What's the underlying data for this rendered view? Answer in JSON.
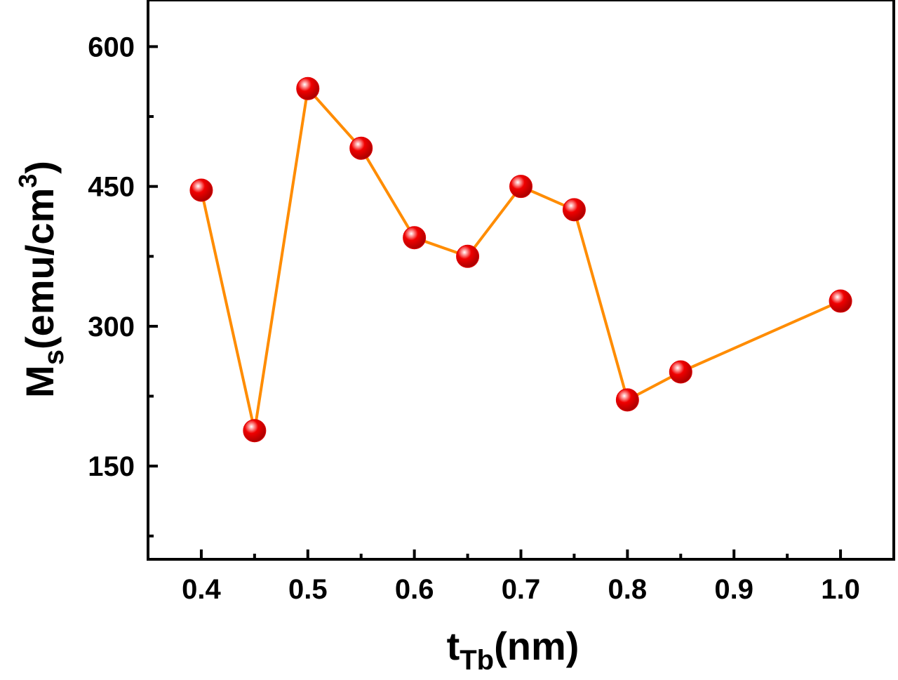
{
  "chart_data": {
    "type": "line",
    "title": "",
    "xlabel": {
      "main": "t",
      "sub": "Tb",
      "unit": "(nm)"
    },
    "ylabel": {
      "main": "M",
      "sub": "s",
      "unit": "(emu/cm",
      "sup": "3",
      "close": ")"
    },
    "xlim": [
      0.35,
      1.05
    ],
    "ylim": [
      50,
      650
    ],
    "x_ticks": [
      {
        "value": 0.4,
        "label": "0.4"
      },
      {
        "value": 0.5,
        "label": "0.5"
      },
      {
        "value": 0.6,
        "label": "0.6"
      },
      {
        "value": 0.7,
        "label": "0.7"
      },
      {
        "value": 0.8,
        "label": "0.8"
      },
      {
        "value": 0.9,
        "label": "0.9"
      },
      {
        "value": 1.0,
        "label": "1.0"
      }
    ],
    "x_minor_ticks": [
      0.45,
      0.55,
      0.65,
      0.75,
      0.85,
      0.95
    ],
    "y_ticks": [
      {
        "value": 150,
        "label": "150"
      },
      {
        "value": 300,
        "label": "300"
      },
      {
        "value": 450,
        "label": "450"
      },
      {
        "value": 600,
        "label": "600"
      }
    ],
    "y_minor_ticks": [
      75,
      225,
      375,
      525
    ],
    "grid": false,
    "series": [
      {
        "name": "Ms",
        "line_color": "#ff8c00",
        "marker_color": "#e00000",
        "x": [
          0.4,
          0.45,
          0.5,
          0.55,
          0.6,
          0.65,
          0.7,
          0.75,
          0.8,
          0.85,
          1.0
        ],
        "y": [
          446,
          188,
          555,
          491,
          395,
          375,
          450,
          425,
          221,
          251,
          327
        ]
      }
    ]
  }
}
